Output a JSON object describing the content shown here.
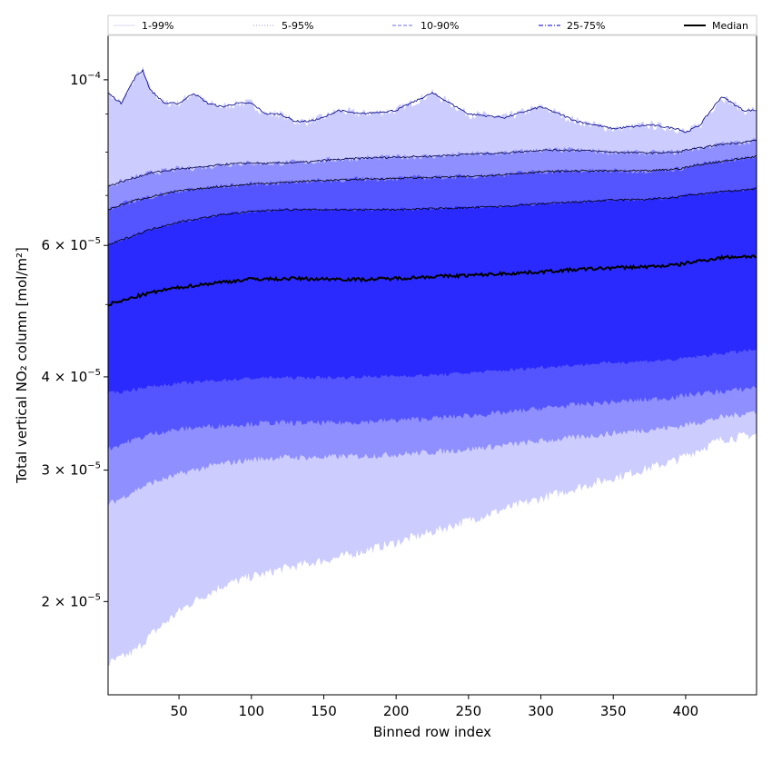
{
  "chart_data": {
    "type": "area",
    "xlabel": "Binned row index",
    "ylabel": "Total vertical NO₂ column [mol/m²]",
    "xlim": [
      1,
      449
    ],
    "ylim": [
      1.5e-05,
      0.000115
    ],
    "yscale": "log",
    "grid": false,
    "legend_position": "top",
    "x_ticks": [
      50,
      100,
      150,
      200,
      250,
      300,
      350,
      400
    ],
    "x_tick_labels": [
      "50",
      "100",
      "150",
      "200",
      "250",
      "300",
      "350",
      "400"
    ],
    "y_ticks": [
      {
        "value": 2e-05,
        "mantissa": "2",
        "exp": "−5"
      },
      {
        "value": 3e-05,
        "mantissa": "3",
        "exp": "−5"
      },
      {
        "value": 4e-05,
        "mantissa": "4",
        "exp": "−5"
      },
      {
        "value": 6e-05,
        "mantissa": "6",
        "exp": "−5"
      },
      {
        "value": 0.0001,
        "mantissa": "",
        "exp": "−4"
      }
    ],
    "legend": [
      {
        "label": "1-99%",
        "color": "#d8d8f0",
        "dash": "solid",
        "width": 1
      },
      {
        "label": "5-95%",
        "color": "#9c9cd8",
        "dash": "dotted",
        "width": 1
      },
      {
        "label": "10-90%",
        "color": "#8a8aee",
        "dash": "dashed",
        "width": 1.2
      },
      {
        "label": "25-75%",
        "color": "#5050e8",
        "dash": "dashdot",
        "width": 1.4
      },
      {
        "label": "Median",
        "color": "#000000",
        "dash": "solid",
        "width": 2
      }
    ],
    "bands": [
      {
        "name": "1-99%",
        "fill": "#ccccff",
        "edge": "#000080"
      },
      {
        "name": "5-95%",
        "fill": "#8f8fff",
        "edge": "#000040"
      },
      {
        "name": "10-90%",
        "fill": "#5555ff",
        "edge": "#000000"
      },
      {
        "name": "25-75%",
        "fill": "#2a2aff",
        "edge": "#000000"
      }
    ],
    "x": [
      1,
      10,
      20,
      25,
      30,
      40,
      50,
      60,
      70,
      80,
      90,
      100,
      110,
      120,
      130,
      140,
      150,
      160,
      175,
      200,
      225,
      250,
      275,
      300,
      325,
      350,
      375,
      395,
      400,
      410,
      425,
      440,
      449
    ],
    "series": [
      {
        "name": "1-99%",
        "role": "upper",
        "values": [
          9.6e-05,
          9.3e-05,
          0.000101,
          0.000103,
          9.7e-05,
          9.3e-05,
          9.3e-05,
          9.6e-05,
          9.3e-05,
          9.2e-05,
          9.3e-05,
          9.3e-05,
          9e-05,
          9e-05,
          8.8e-05,
          8.8e-05,
          8.9e-05,
          9.1e-05,
          9e-05,
          9.1e-05,
          9.6e-05,
          9e-05,
          8.9e-05,
          9.2e-05,
          8.8e-05,
          8.6e-05,
          8.7e-05,
          8.6e-05,
          8.5e-05,
          8.7e-05,
          9.5e-05,
          9.1e-05,
          9.1e-05
        ]
      },
      {
        "name": "5-95%",
        "role": "upper",
        "values": [
          7.2e-05,
          7.3e-05,
          7.4e-05,
          7.45e-05,
          7.5e-05,
          7.55e-05,
          7.6e-05,
          7.62e-05,
          7.65e-05,
          7.7e-05,
          7.72e-05,
          7.74e-05,
          7.72e-05,
          7.74e-05,
          7.75e-05,
          7.76e-05,
          7.8e-05,
          7.82e-05,
          7.85e-05,
          7.88e-05,
          7.9e-05,
          7.95e-05,
          7.98e-05,
          8.05e-05,
          8.05e-05,
          8e-05,
          7.98e-05,
          8e-05,
          8.05e-05,
          8.1e-05,
          8.2e-05,
          8.25e-05,
          8.3e-05
        ]
      },
      {
        "name": "10-90%",
        "role": "upper",
        "values": [
          6.7e-05,
          6.8e-05,
          6.9e-05,
          6.93e-05,
          6.97e-05,
          7.03e-05,
          7.1e-05,
          7.13e-05,
          7.17e-05,
          7.2e-05,
          7.22e-05,
          7.25e-05,
          7.27e-05,
          7.28e-05,
          7.3e-05,
          7.32e-05,
          7.33e-05,
          7.34e-05,
          7.36e-05,
          7.38e-05,
          7.4e-05,
          7.42e-05,
          7.47e-05,
          7.53e-05,
          7.55e-05,
          7.55e-05,
          7.55e-05,
          7.6e-05,
          7.63e-05,
          7.7e-05,
          7.78e-05,
          7.85e-05,
          7.9e-05
        ]
      },
      {
        "name": "25-75%",
        "role": "upper",
        "values": [
          6e-05,
          6.1e-05,
          6.2e-05,
          6.25e-05,
          6.3e-05,
          6.38e-05,
          6.45e-05,
          6.5e-05,
          6.55e-05,
          6.6e-05,
          6.63e-05,
          6.66e-05,
          6.68e-05,
          6.7e-05,
          6.7e-05,
          6.7e-05,
          6.7e-05,
          6.7e-05,
          6.7e-05,
          6.7e-05,
          6.72e-05,
          6.74e-05,
          6.77e-05,
          6.82e-05,
          6.86e-05,
          6.9e-05,
          6.92e-05,
          6.96e-05,
          7e-05,
          7.03e-05,
          7.08e-05,
          7.12e-05,
          7.15e-05
        ]
      },
      {
        "name": "Median",
        "role": "line",
        "values": [
          5e-05,
          5.05e-05,
          5.12e-05,
          5.15e-05,
          5.18e-05,
          5.23e-05,
          5.27e-05,
          5.3e-05,
          5.33e-05,
          5.36e-05,
          5.38e-05,
          5.41e-05,
          5.41e-05,
          5.41e-05,
          5.42e-05,
          5.41e-05,
          5.41e-05,
          5.41e-05,
          5.4e-05,
          5.42e-05,
          5.45e-05,
          5.47e-05,
          5.5e-05,
          5.53e-05,
          5.57e-05,
          5.6e-05,
          5.62e-05,
          5.65e-05,
          5.68e-05,
          5.72e-05,
          5.78e-05,
          5.8e-05,
          5.8e-05
        ]
      },
      {
        "name": "25-75%",
        "role": "lower",
        "values": [
          3.8e-05,
          3.82e-05,
          3.85e-05,
          3.87e-05,
          3.88e-05,
          3.9e-05,
          3.92e-05,
          3.93e-05,
          3.95e-05,
          3.96e-05,
          3.97e-05,
          3.98e-05,
          3.99e-05,
          3.99e-05,
          3.99e-05,
          3.99e-05,
          3.99e-05,
          3.99e-05,
          4e-05,
          4.01e-05,
          4.02e-05,
          4.05e-05,
          4.08e-05,
          4.12e-05,
          4.15e-05,
          4.18e-05,
          4.2e-05,
          4.22e-05,
          4.24e-05,
          4.26e-05,
          4.3e-05,
          4.33e-05,
          4.35e-05
        ]
      },
      {
        "name": "10-90%",
        "role": "lower",
        "values": [
          3.2e-05,
          3.25e-05,
          3.3e-05,
          3.32e-05,
          3.35e-05,
          3.38e-05,
          3.4e-05,
          3.42e-05,
          3.43e-05,
          3.44e-05,
          3.45e-05,
          3.46e-05,
          3.47e-05,
          3.47e-05,
          3.47e-05,
          3.47e-05,
          3.47e-05,
          3.47e-05,
          3.48e-05,
          3.5e-05,
          3.52e-05,
          3.55e-05,
          3.58e-05,
          3.63e-05,
          3.67e-05,
          3.7e-05,
          3.73e-05,
          3.76e-05,
          3.78e-05,
          3.8e-05,
          3.82e-05,
          3.85e-05,
          3.88e-05
        ]
      },
      {
        "name": "5-95%",
        "role": "lower",
        "values": [
          2.7e-05,
          2.75e-05,
          2.82e-05,
          2.85e-05,
          2.88e-05,
          2.92e-05,
          2.96e-05,
          3e-05,
          3.03e-05,
          3.06e-05,
          3.08e-05,
          3.1e-05,
          3.11e-05,
          3.12e-05,
          3.12e-05,
          3.12e-05,
          3.12e-05,
          3.13e-05,
          3.13e-05,
          3.15e-05,
          3.17e-05,
          3.2e-05,
          3.24e-05,
          3.28e-05,
          3.32e-05,
          3.36e-05,
          3.4e-05,
          3.43e-05,
          3.45e-05,
          3.48e-05,
          3.53e-05,
          3.57e-05,
          3.6e-05
        ]
      },
      {
        "name": "1-99%",
        "role": "lower",
        "values": [
          1.65e-05,
          1.68e-05,
          1.72e-05,
          1.76e-05,
          1.8e-05,
          1.87e-05,
          1.94e-05,
          2e-05,
          2.05e-05,
          2.1e-05,
          2.13e-05,
          2.16e-05,
          2.18e-05,
          2.21e-05,
          2.23e-05,
          2.25e-05,
          2.27e-05,
          2.29e-05,
          2.33e-05,
          2.4e-05,
          2.48e-05,
          2.57e-05,
          2.66e-05,
          2.75e-05,
          2.84e-05,
          2.93e-05,
          3.02e-05,
          3.1e-05,
          3.14e-05,
          3.2e-05,
          3.3e-05,
          3.33e-05,
          3.35e-05
        ]
      }
    ]
  }
}
